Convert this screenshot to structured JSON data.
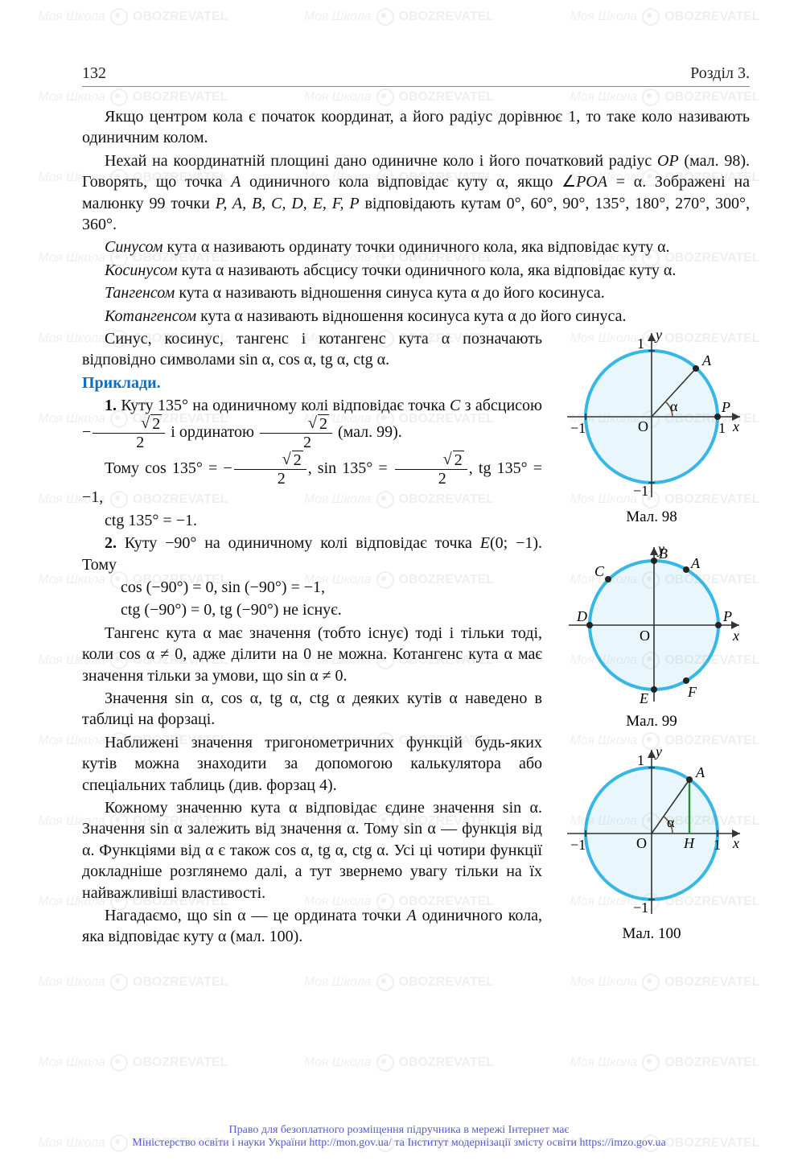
{
  "header": {
    "page_number": "132",
    "section": "Розділ 3."
  },
  "watermark": {
    "text1": "Моя Школа",
    "text2": "OBOZREVATEL"
  },
  "body": {
    "p1": "Якщо центром кола є початок координат, а його радіус дорівнює 1, то таке коло називають одиничним колом.",
    "p2a": "Нехай на координатній площині дано одиничне коло і його початковий радіус ",
    "p2b": " (мал. 98). Говорять, що точка ",
    "p2c": " одиничного кола відповідає куту α, якщо ∠",
    "p2d": " = α. Зображені на малюнку 99 точки ",
    "p2e": " відповідають кутам 0°, 60°, 90°, 135°, 180°, 270°, 300°, 360°.",
    "op": "OP",
    "a": "A",
    "poa": "POA",
    "pts": "P, A, B, C, D, E, F, P",
    "p3a": "Синусом",
    "p3b": " кута α називають ординату точки одиничного кола, яка відповідає куту α.",
    "p4a": "Косинусом",
    "p4b": " кута α називають абсцису точки одиничного кола, яка відповідає куту α.",
    "p5a": "Тангенсом",
    "p5b": " кута α називають відношення синуса кута α до його косинуса.",
    "p6a": "Котангенсом",
    "p6b": " кута α називають відношення косинуса кута α до його синуса.",
    "p7": "Синус, косинус, тангенс і котангенс кута α позначають відповідно символами sin α, cos α, tg α, ctg α.",
    "examples": "Приклади.",
    "ex1a": "1.",
    "ex1b": " Куту 135° на одиничному колі відповідає точка ",
    "ex1c": " з абсцисою ",
    "ex1d": " і ординатою ",
    "ex1e": " (мал. 99).",
    "c": "C",
    "eq1a": "Тому  cos 135° = ",
    "eq1b": ",   sin 135° = ",
    "eq1c": ",   tg 135° = −1,",
    "eq1d": "ctg 135° = −1.",
    "ex2a": "2.",
    "ex2b": " Куту −90° на одиничному колі відповідає точка ",
    "ex2c": "(0; −1). Тому",
    "e": "E",
    "eq2a": "cos (−90°) = 0,  sin (−90°) = −1,",
    "eq2b": "ctg (−90°) = 0,  tg (−90°) не існує.",
    "p8": "Тангенс кута α має значення (тобто існує) тоді і тільки тоді, коли cos α ≠ 0, адже ділити на 0 не можна. Котангенс кута α має значення тільки за умови, що sin α ≠ 0.",
    "p9": "Значення sin α, cos α, tg α, ctg α деяких кутів α наведено в таблиці на форзаці.",
    "p10": "Наближені значення тригонометричних функцій будь-яких кутів можна знаходити за допомогою калькулятора або спеціальних таблиць (див. форзац 4).",
    "p11": "Кожному значенню кута α відповідає єдине значення sin α. Значення sin α залежить від значення α. Тому sin α — функція від α. Функціями від α є також cos α, tg α, ctg α. Усі ці чотири функції докладніше розглянемо далі, а тут звернемо увагу тільки на їх найважливіші властивості.",
    "p12a": "Нагадаємо, що sin α — це ордината точки ",
    "p12b": " одиничного кола, яка відповідає куту α (мал. 100).",
    "a2": "A"
  },
  "figs": {
    "f98": {
      "caption": "Мал. 98",
      "labels": {
        "y": "y",
        "x": "x",
        "A": "A",
        "P": "P",
        "O": "O",
        "one": "1",
        "mone": "−1",
        "alpha": "α"
      }
    },
    "f99": {
      "caption": "Мал. 99",
      "labels": {
        "y": "y",
        "x": "x",
        "A": "A",
        "B": "B",
        "C": "C",
        "D": "D",
        "E": "E",
        "F": "F",
        "P": "P",
        "O": "O"
      }
    },
    "f100": {
      "caption": "Мал. 100",
      "labels": {
        "y": "y",
        "x": "x",
        "A": "A",
        "O": "O",
        "H": "H",
        "one": "1",
        "mone": "−1",
        "alpha": "α"
      }
    }
  },
  "colors": {
    "circle": "#36b7e6",
    "axis": "#333333",
    "fill": "#e9f7fc",
    "dot": "#222222",
    "angle": "#734f2a"
  },
  "footer": {
    "l1": "Право для безоплатного розміщення підручника в мережі Інтернет має",
    "l2a": "Міністерство освіти і науки України ",
    "l2b": "http://mon.gov.ua/",
    "l2c": " та Інститут модернізації змісту освіти ",
    "l2d": "https://imzo.gov.ua"
  }
}
